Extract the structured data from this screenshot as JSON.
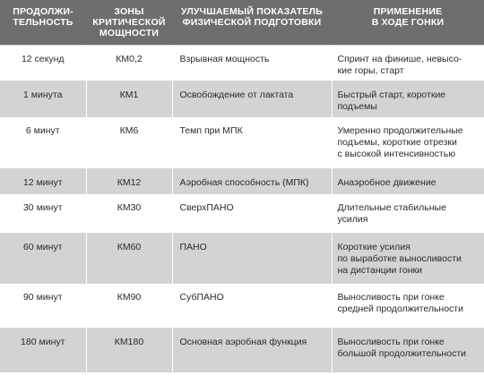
{
  "table": {
    "headers": [
      "ПРОДОЛЖИ-\nТЕЛЬНОСТЬ",
      "ЗОНЫ\nКРИТИЧЕСКОЙ\nМОЩНОСТИ",
      "УЛУЧШАЕМЫЙ ПОКАЗАТЕЛЬ\nФИЗИЧЕСКОЙ ПОДГОТОВКИ",
      "ПРИМЕНЕНИЕ\nВ ХОДЕ ГОНКИ"
    ],
    "rows": [
      {
        "duration": "12 секунд",
        "zone": "КМ0,2",
        "improved": "Взрывная мощность",
        "application": "Спринт на финише, невысо-\nкие горы, старт"
      },
      {
        "duration": "1 минута",
        "zone": "КМ1",
        "improved": "Освобождение от лактата",
        "application": "Быстрый старт, короткие\nподъемы"
      },
      {
        "duration": "6 минут",
        "zone": "КМ6",
        "improved": "Темп при МПК",
        "application": "Умеренно продолжительные\nподъемы, короткие отрезки\nс высокой интенсивностью"
      },
      {
        "duration": "12 минут",
        "zone": "КМ12",
        "improved": "Аэробная способность (МПК)",
        "application": "Анаэробное движение"
      },
      {
        "duration": "30 минут",
        "zone": "КМ30",
        "improved": "СверхПАНО",
        "application": "Длительные стабильные\nусилия"
      },
      {
        "duration": "60 минут",
        "zone": "КМ60",
        "improved": "ПАНО",
        "application": "Короткие усилия\nпо выработке выносливости\nна дистанции гонки"
      },
      {
        "duration": "90 минут",
        "zone": "КМ90",
        "improved": "СубПАНО",
        "application": "Выносливость при гонке\nсредней продолжительности"
      },
      {
        "duration": "180 минут",
        "zone": "КМ180",
        "improved": "Основная аэробная функция",
        "application": "Выносливость при гонке\nбольшой продолжительности"
      }
    ]
  }
}
